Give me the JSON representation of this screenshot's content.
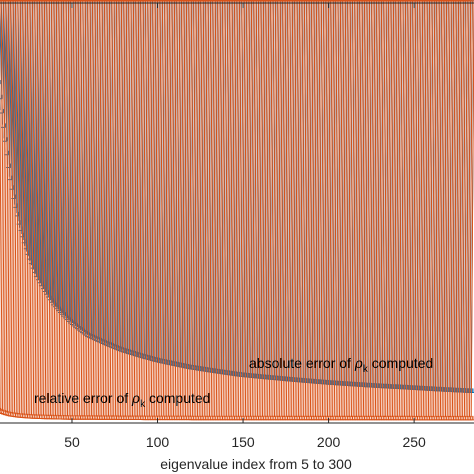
{
  "chart_data": {
    "type": "scatter",
    "title": "",
    "xlabel": "eigenvalue index from 5 to 300",
    "ylabel": "",
    "xlim": [
      5,
      285
    ],
    "ylim": [
      0,
      1
    ],
    "xticks": [
      50,
      100,
      150,
      200,
      250
    ],
    "grid": false,
    "marker": "*",
    "series": [
      {
        "name": "absolute error of ρk computed",
        "color": "#0072BD",
        "label_main": "absolute error of ",
        "label_rho": "ρ",
        "label_sub": "k",
        "label_tail": " computed",
        "x": [
          5,
          7,
          10,
          12,
          15,
          20,
          25,
          30,
          40,
          50,
          60,
          80,
          100,
          120,
          150,
          175,
          200,
          225,
          250,
          275,
          285
        ],
        "y": [
          0.945,
          0.87,
          0.76,
          0.69,
          0.595,
          0.485,
          0.41,
          0.355,
          0.285,
          0.24,
          0.207,
          0.17,
          0.145,
          0.127,
          0.108,
          0.098,
          0.089,
          0.082,
          0.076,
          0.07,
          0.068
        ]
      },
      {
        "name": "relative error of ρk computed",
        "color": "#D95319",
        "label_main": "relative error of ",
        "label_rho": "ρ",
        "label_sub": "k",
        "label_tail": " computed",
        "x": [
          5,
          8,
          10,
          15,
          20,
          30,
          50,
          100,
          200,
          285
        ],
        "y": [
          0.03,
          0.02,
          0.016,
          0.01,
          0.007,
          0.004,
          0.002,
          0.001,
          0.0005,
          0.0003
        ]
      }
    ]
  }
}
